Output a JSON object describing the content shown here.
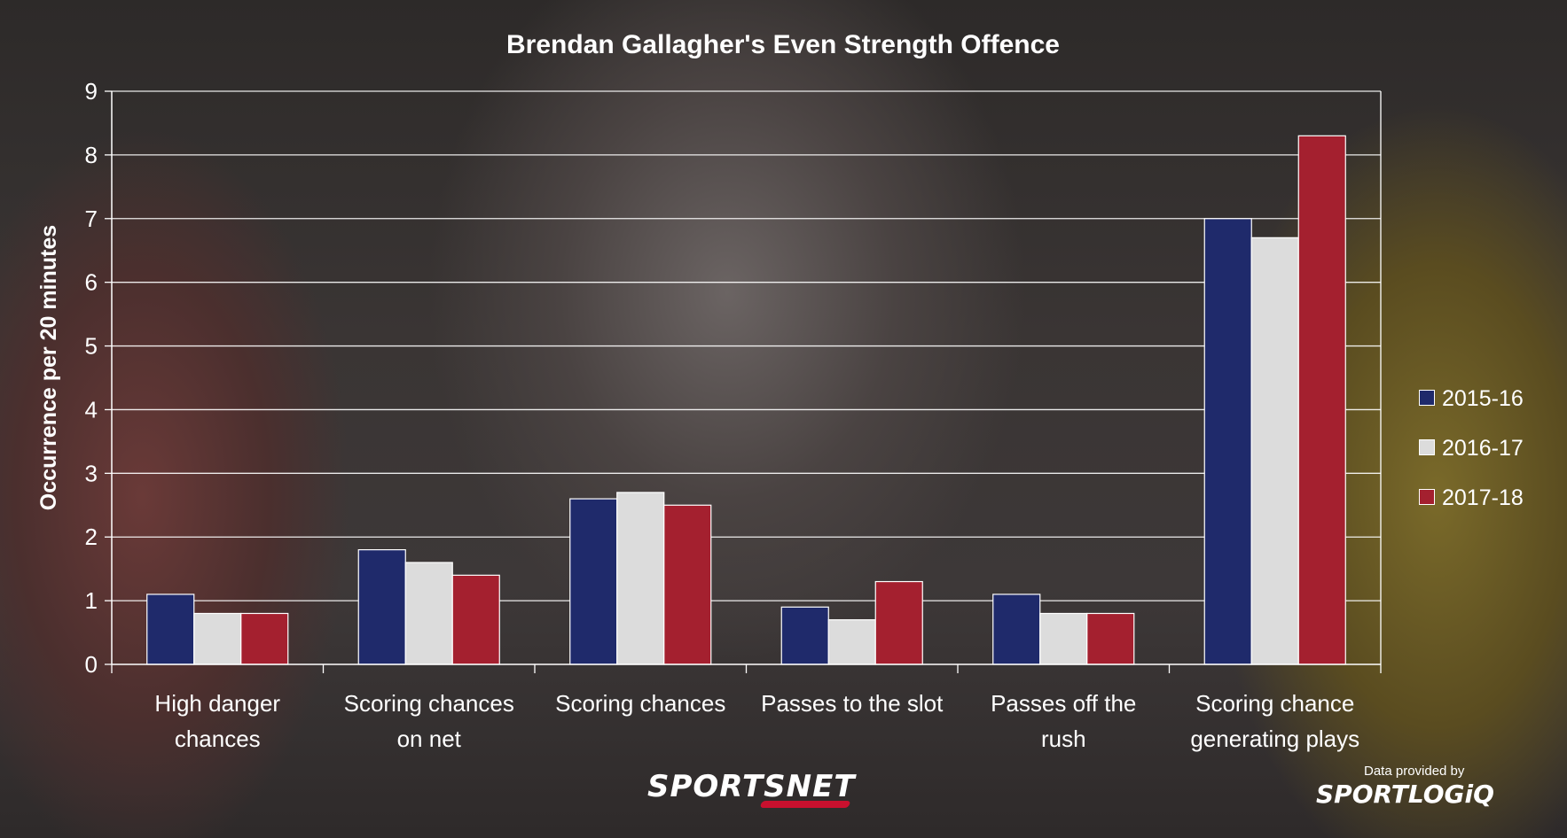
{
  "chart_data": {
    "type": "bar",
    "title": "Brendan Gallagher's Even Strength Offence",
    "xlabel": "",
    "ylabel": "Occurrence per 20 minutes",
    "ylim": [
      0,
      9
    ],
    "yticks": [
      0,
      1,
      2,
      3,
      4,
      5,
      6,
      7,
      8,
      9
    ],
    "grid": true,
    "legend_position": "right",
    "categories": [
      [
        "High danger",
        "chances"
      ],
      [
        "Scoring chances",
        "on net"
      ],
      [
        "Scoring chances"
      ],
      [
        "Passes to the slot"
      ],
      [
        "Passes off the",
        "rush"
      ],
      [
        "Scoring chance",
        "generating plays"
      ]
    ],
    "series": [
      {
        "name": "2015-16",
        "color": "#1f2a6b",
        "values": [
          1.1,
          1.8,
          2.6,
          0.9,
          1.1,
          7.0
        ]
      },
      {
        "name": "2016-17",
        "color": "#dcdcdc",
        "values": [
          0.8,
          1.6,
          2.7,
          0.7,
          0.8,
          6.7
        ]
      },
      {
        "name": "2017-18",
        "color": "#a4202f",
        "values": [
          0.8,
          1.4,
          2.5,
          1.3,
          0.8,
          8.3
        ]
      }
    ]
  },
  "branding": {
    "sportsnet_main": "SPORTS",
    "sportsnet_suffix": "NET",
    "provided_by": "Data provided by",
    "sportlogiq": "SPORTLOGiQ"
  }
}
